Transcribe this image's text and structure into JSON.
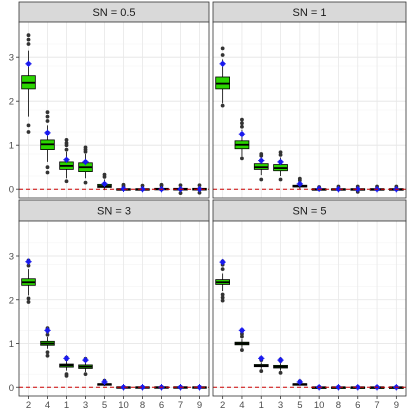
{
  "chart_data": {
    "type": "box",
    "layout": "facet grid 2x2",
    "facet_variable": "SN",
    "categories": [
      "2",
      "4",
      "1",
      "3",
      "5",
      "10",
      "8",
      "6",
      "7",
      "9"
    ],
    "ylim": [
      -0.2,
      3.8
    ],
    "yticks": [
      0,
      1,
      2,
      3
    ],
    "grid": true,
    "reference_line": {
      "y": 0,
      "color": "#cc0000",
      "style": "dashed"
    },
    "colors": {
      "box_fill": "#2bd400",
      "box_border": "#000000",
      "outlier": "#333333",
      "mean_point": "#1a1aee",
      "strip_bg": "#d9d9d9"
    },
    "panels": [
      {
        "strip_label": "SN =  0.5",
        "mean_points": [
          2.85,
          1.28,
          0.67,
          0.62,
          0.12,
          0.01,
          0.0,
          0.0,
          0.0,
          0.0
        ],
        "boxes": [
          {
            "category": "2",
            "lower_whisker": 1.65,
            "q1": 2.28,
            "median": 2.42,
            "q3": 2.58,
            "upper_whisker": 3.15,
            "outliers": [
              3.3,
              3.4,
              3.5,
              1.45,
              1.3
            ]
          },
          {
            "category": "4",
            "lower_whisker": 0.62,
            "q1": 0.9,
            "median": 1.02,
            "q3": 1.12,
            "upper_whisker": 1.45,
            "outliers": [
              1.55,
              1.65,
              1.75,
              0.5,
              0.38
            ]
          },
          {
            "category": "1",
            "lower_whisker": 0.25,
            "q1": 0.45,
            "median": 0.53,
            "q3": 0.62,
            "upper_whisker": 0.85,
            "outliers": [
              0.9,
              1.0,
              1.05,
              1.12,
              0.18
            ]
          },
          {
            "category": "3",
            "lower_whisker": 0.25,
            "q1": 0.4,
            "median": 0.5,
            "q3": 0.6,
            "upper_whisker": 0.8,
            "outliers": [
              0.85,
              0.9,
              0.95,
              0.15
            ]
          },
          {
            "category": "5",
            "lower_whisker": -0.02,
            "q1": 0.04,
            "median": 0.07,
            "q3": 0.11,
            "upper_whisker": 0.22,
            "outliers": [
              0.28,
              0.33
            ]
          },
          {
            "category": "10",
            "lower_whisker": -0.04,
            "q1": -0.01,
            "median": 0.0,
            "q3": 0.01,
            "upper_whisker": 0.04,
            "outliers": [
              0.07,
              0.1
            ]
          },
          {
            "category": "8",
            "lower_whisker": -0.05,
            "q1": -0.01,
            "median": 0.0,
            "q3": 0.01,
            "upper_whisker": 0.05,
            "outliers": [
              0.08
            ]
          },
          {
            "category": "6",
            "lower_whisker": -0.05,
            "q1": -0.01,
            "median": 0.0,
            "q3": 0.02,
            "upper_whisker": 0.05,
            "outliers": [
              0.08,
              0.1
            ]
          },
          {
            "category": "7",
            "lower_whisker": -0.06,
            "q1": -0.02,
            "median": 0.0,
            "q3": 0.02,
            "upper_whisker": 0.06,
            "outliers": [
              0.09,
              -0.09
            ]
          },
          {
            "category": "9",
            "lower_whisker": -0.06,
            "q1": -0.02,
            "median": 0.0,
            "q3": 0.02,
            "upper_whisker": 0.06,
            "outliers": [
              0.09,
              -0.08
            ]
          }
        ]
      },
      {
        "strip_label": "SN = 1",
        "mean_points": [
          2.85,
          1.25,
          0.65,
          0.62,
          0.12,
          0.01,
          0.0,
          0.0,
          0.0,
          0.0
        ],
        "boxes": [
          {
            "category": "2",
            "lower_whisker": 1.95,
            "q1": 2.28,
            "median": 2.4,
            "q3": 2.55,
            "upper_whisker": 2.95,
            "outliers": [
              3.05,
              3.2,
              1.9
            ]
          },
          {
            "category": "4",
            "lower_whisker": 0.75,
            "q1": 0.92,
            "median": 1.01,
            "q3": 1.1,
            "upper_whisker": 1.35,
            "outliers": [
              1.42,
              1.5,
              1.58,
              0.7
            ]
          },
          {
            "category": "1",
            "lower_whisker": 0.32,
            "q1": 0.45,
            "median": 0.5,
            "q3": 0.58,
            "upper_whisker": 0.72,
            "outliers": [
              0.76,
              0.8,
              0.22
            ]
          },
          {
            "category": "3",
            "lower_whisker": 0.3,
            "q1": 0.42,
            "median": 0.48,
            "q3": 0.56,
            "upper_whisker": 0.72,
            "outliers": [
              0.78,
              0.84,
              0.22
            ]
          },
          {
            "category": "5",
            "lower_whisker": 0.0,
            "q1": 0.05,
            "median": 0.07,
            "q3": 0.09,
            "upper_whisker": 0.15,
            "outliers": [
              0.2,
              0.24
            ]
          },
          {
            "category": "10",
            "lower_whisker": -0.03,
            "q1": -0.01,
            "median": 0.0,
            "q3": 0.01,
            "upper_whisker": 0.03,
            "outliers": [
              0.05
            ]
          },
          {
            "category": "8",
            "lower_whisker": -0.03,
            "q1": -0.01,
            "median": 0.0,
            "q3": 0.01,
            "upper_whisker": 0.04,
            "outliers": [
              0.06
            ]
          },
          {
            "category": "6",
            "lower_whisker": -0.04,
            "q1": -0.01,
            "median": 0.0,
            "q3": 0.01,
            "upper_whisker": 0.04,
            "outliers": [
              0.06,
              -0.06
            ]
          },
          {
            "category": "7",
            "lower_whisker": -0.04,
            "q1": -0.01,
            "median": 0.0,
            "q3": 0.01,
            "upper_whisker": 0.04,
            "outliers": [
              0.06
            ]
          },
          {
            "category": "9",
            "lower_whisker": -0.04,
            "q1": -0.01,
            "median": 0.0,
            "q3": 0.01,
            "upper_whisker": 0.04,
            "outliers": [
              0.06
            ]
          }
        ]
      },
      {
        "strip_label": "SN = 3",
        "mean_points": [
          2.87,
          1.3,
          0.66,
          0.62,
          0.12,
          0.0,
          0.0,
          0.0,
          0.0,
          0.0
        ],
        "boxes": [
          {
            "category": "2",
            "lower_whisker": 2.1,
            "q1": 2.33,
            "median": 2.4,
            "q3": 2.48,
            "upper_whisker": 2.7,
            "outliers": [
              2.78,
              2.9,
              2.03,
              1.95
            ]
          },
          {
            "category": "4",
            "lower_whisker": 0.88,
            "q1": 0.96,
            "median": 1.0,
            "q3": 1.05,
            "upper_whisker": 1.15,
            "outliers": [
              1.2,
              1.28,
              1.35,
              0.8,
              0.72
            ]
          },
          {
            "category": "1",
            "lower_whisker": 0.38,
            "q1": 0.46,
            "median": 0.5,
            "q3": 0.53,
            "upper_whisker": 0.6,
            "outliers": [
              0.64,
              0.68,
              0.3,
              0.26
            ]
          },
          {
            "category": "3",
            "lower_whisker": 0.35,
            "q1": 0.43,
            "median": 0.47,
            "q3": 0.51,
            "upper_whisker": 0.58,
            "outliers": [
              0.62,
              0.65,
              0.3
            ]
          },
          {
            "category": "5",
            "lower_whisker": 0.03,
            "q1": 0.05,
            "median": 0.07,
            "q3": 0.08,
            "upper_whisker": 0.11,
            "outliers": [
              0.13,
              0.15
            ]
          },
          {
            "category": "10",
            "lower_whisker": -0.02,
            "q1": -0.01,
            "median": 0.0,
            "q3": 0.01,
            "upper_whisker": 0.02,
            "outliers": []
          },
          {
            "category": "8",
            "lower_whisker": -0.02,
            "q1": -0.01,
            "median": 0.0,
            "q3": 0.01,
            "upper_whisker": 0.02,
            "outliers": []
          },
          {
            "category": "6",
            "lower_whisker": -0.02,
            "q1": -0.01,
            "median": 0.0,
            "q3": 0.01,
            "upper_whisker": 0.02,
            "outliers": []
          },
          {
            "category": "7",
            "lower_whisker": -0.02,
            "q1": -0.01,
            "median": 0.0,
            "q3": 0.01,
            "upper_whisker": 0.02,
            "outliers": []
          },
          {
            "category": "9",
            "lower_whisker": -0.02,
            "q1": -0.01,
            "median": 0.0,
            "q3": 0.01,
            "upper_whisker": 0.02,
            "outliers": []
          }
        ]
      },
      {
        "strip_label": "SN = 5",
        "mean_points": [
          2.86,
          1.3,
          0.66,
          0.62,
          0.12,
          0.0,
          0.0,
          0.0,
          0.0,
          0.0
        ],
        "boxes": [
          {
            "category": "2",
            "lower_whisker": 2.2,
            "q1": 2.35,
            "median": 2.4,
            "q3": 2.46,
            "upper_whisker": 2.6,
            "outliers": [
              2.7,
              2.8,
              2.88,
              2.12,
              2.05,
              1.98
            ]
          },
          {
            "category": "4",
            "lower_whisker": 0.9,
            "q1": 0.97,
            "median": 1.0,
            "q3": 1.03,
            "upper_whisker": 1.1,
            "outliers": [
              1.16,
              1.22,
              1.28,
              0.85
            ]
          },
          {
            "category": "1",
            "lower_whisker": 0.42,
            "q1": 0.47,
            "median": 0.49,
            "q3": 0.52,
            "upper_whisker": 0.57,
            "outliers": [
              0.62,
              0.66,
              0.37
            ]
          },
          {
            "category": "3",
            "lower_whisker": 0.38,
            "q1": 0.44,
            "median": 0.47,
            "q3": 0.5,
            "upper_whisker": 0.55,
            "outliers": [
              0.6,
              0.64,
              0.33
            ]
          },
          {
            "category": "5",
            "lower_whisker": 0.04,
            "q1": 0.06,
            "median": 0.07,
            "q3": 0.08,
            "upper_whisker": 0.1,
            "outliers": [
              0.12,
              0.14
            ]
          },
          {
            "category": "10",
            "lower_whisker": -0.01,
            "q1": -0.005,
            "median": 0.0,
            "q3": 0.005,
            "upper_whisker": 0.01,
            "outliers": []
          },
          {
            "category": "8",
            "lower_whisker": -0.01,
            "q1": -0.005,
            "median": 0.0,
            "q3": 0.005,
            "upper_whisker": 0.01,
            "outliers": []
          },
          {
            "category": "6",
            "lower_whisker": -0.01,
            "q1": -0.005,
            "median": 0.0,
            "q3": 0.005,
            "upper_whisker": 0.01,
            "outliers": []
          },
          {
            "category": "7",
            "lower_whisker": -0.01,
            "q1": -0.005,
            "median": 0.0,
            "q3": 0.005,
            "upper_whisker": 0.01,
            "outliers": []
          },
          {
            "category": "9",
            "lower_whisker": -0.01,
            "q1": -0.005,
            "median": 0.0,
            "q3": 0.005,
            "upper_whisker": 0.01,
            "outliers": []
          }
        ]
      }
    ]
  }
}
